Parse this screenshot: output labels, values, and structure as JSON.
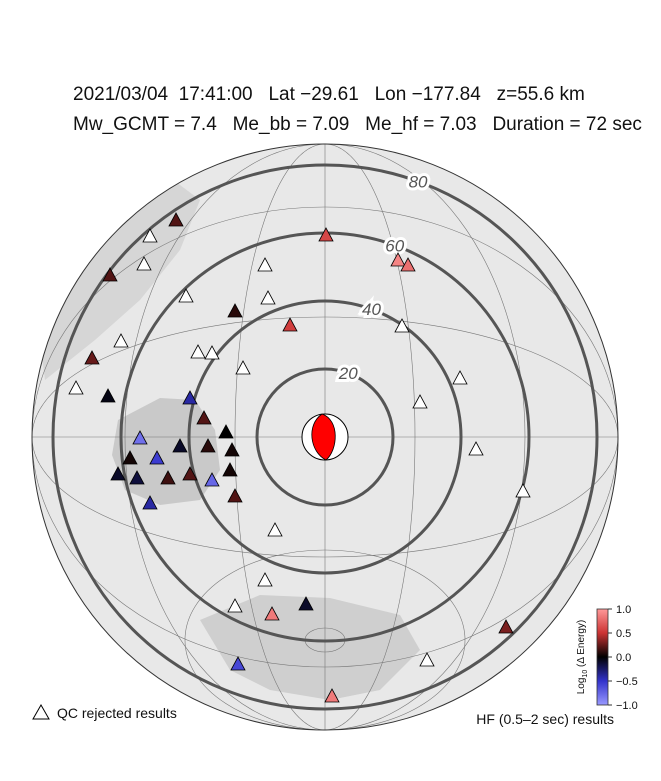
{
  "header": {
    "line1": "2021/03/04  17:41:00   Lat −29.61   Lon −177.84   z=55.6 km",
    "line2": "Mw_GCMT = 7.4   Me_bb = 7.09   Me_hf = 7.03   Duration = 72 sec"
  },
  "distance_rings": [
    20,
    40,
    60,
    80
  ],
  "colorbar": {
    "label_base": "Log",
    "label_sub": "10",
    "label_rest": " (Δ Energy)",
    "lim": [
      -1,
      1
    ],
    "ticks": [
      {
        "value": 1,
        "label": "1.0"
      },
      {
        "value": 0.5,
        "label": "0.5"
      },
      {
        "value": 0,
        "label": "0.0"
      },
      {
        "value": -0.5,
        "label": "−0.5"
      },
      {
        "value": -1,
        "label": "−1.0"
      }
    ]
  },
  "stations": {
    "values": [
      0.2,
      0.6,
      0.9,
      0.8,
      0.2,
      0.1,
      0.55,
      0.25,
      -0.05,
      -0.4,
      0.2,
      -0.8,
      0.0,
      0.05,
      -0.1,
      0.1,
      -0.55,
      0.05,
      -0.1,
      -0.15,
      0.15,
      0.2,
      -0.75,
      0.05,
      -0.4,
      0.2,
      0.85,
      -0.1,
      0.3,
      -0.6,
      0.85
    ]
  },
  "legend": {
    "rejected": "QC rejected results",
    "results": "HF (0.5–2 sec) results"
  }
}
